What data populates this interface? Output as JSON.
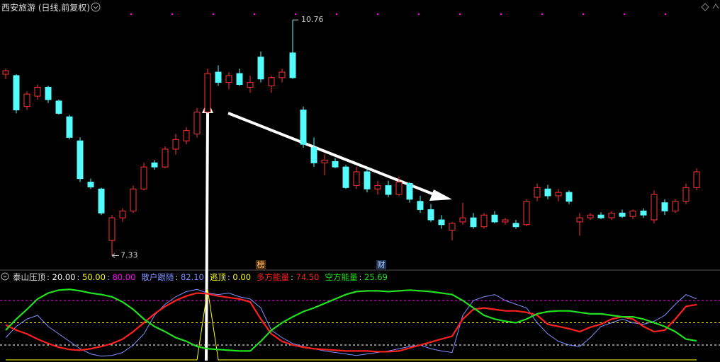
{
  "chart_data": [
    {
      "type": "candlestick",
      "title": "西安旅游 (日线,前复权)",
      "high_label": "10.76",
      "low_label": "7.33",
      "markers": [
        "榜",
        "财"
      ],
      "ylim": [
        7.14,
        11.05
      ],
      "up_color": "#ff3232",
      "down_color": "#54fcfc",
      "open": [
        9.97,
        9.95,
        9.5,
        9.65,
        9.78,
        9.58,
        9.35,
        9.0,
        8.4,
        8.3,
        7.55,
        7.88,
        7.98,
        8.3,
        8.68,
        8.62,
        8.88,
        9.0,
        9.1,
        9.42,
        10.0,
        9.85,
        9.98,
        9.78,
        10.22,
        9.8,
        9.92,
        10.28,
        9.45,
        8.9,
        8.68,
        8.7,
        8.62,
        8.35,
        8.55,
        8.3,
        8.35,
        8.22,
        8.38,
        8.12,
        8.0,
        7.85,
        7.7,
        7.82,
        7.88,
        7.75,
        7.92,
        7.82,
        7.8,
        7.78,
        8.18,
        8.3,
        8.2,
        8.25,
        7.82,
        7.88,
        7.92,
        7.88,
        7.95,
        7.9,
        7.98,
        7.85,
        8.1,
        7.98,
        8.12,
        8.32
      ],
      "high": [
        10.05,
        9.97,
        9.72,
        9.82,
        9.8,
        9.6,
        9.38,
        9.05,
        8.45,
        8.32,
        7.92,
        8.02,
        8.35,
        8.68,
        8.72,
        8.92,
        9.1,
        9.2,
        9.48,
        10.05,
        10.1,
        10.0,
        10.05,
        9.95,
        10.3,
        9.95,
        10.05,
        10.76,
        9.5,
        9.05,
        8.8,
        8.75,
        8.65,
        8.62,
        8.6,
        8.42,
        8.42,
        8.48,
        8.4,
        8.2,
        8.08,
        7.92,
        7.82,
        8.1,
        7.95,
        7.95,
        7.98,
        7.88,
        7.85,
        8.15,
        8.38,
        8.36,
        8.3,
        8.28,
        7.95,
        7.95,
        7.96,
        7.98,
        8.0,
        8.0,
        8.02,
        8.28,
        8.15,
        8.15,
        8.38,
        8.6
      ],
      "low": [
        9.9,
        9.4,
        9.45,
        9.6,
        9.55,
        9.38,
        9.02,
        8.4,
        8.3,
        7.92,
        7.33,
        7.82,
        7.95,
        8.28,
        8.58,
        8.6,
        8.8,
        8.95,
        9.05,
        9.4,
        9.8,
        9.75,
        9.8,
        9.7,
        9.85,
        9.7,
        9.85,
        9.9,
        8.9,
        8.62,
        8.5,
        8.6,
        8.3,
        8.3,
        8.25,
        8.22,
        8.18,
        8.2,
        8.1,
        7.95,
        7.82,
        7.72,
        7.55,
        7.78,
        7.72,
        7.72,
        7.8,
        7.78,
        7.72,
        7.76,
        8.12,
        8.15,
        8.12,
        8.08,
        7.62,
        7.85,
        7.86,
        7.85,
        7.88,
        7.86,
        7.88,
        7.8,
        7.92,
        7.95,
        8.08,
        8.28
      ],
      "close": [
        10.02,
        9.45,
        9.68,
        9.78,
        9.6,
        9.4,
        9.05,
        8.45,
        8.33,
        7.95,
        7.88,
        7.98,
        8.3,
        8.62,
        8.62,
        8.88,
        9.02,
        9.15,
        9.42,
        9.98,
        9.85,
        9.95,
        9.82,
        9.85,
        9.9,
        9.92,
        10.0,
        9.92,
        8.95,
        8.68,
        8.72,
        8.62,
        8.32,
        8.55,
        8.3,
        8.35,
        8.22,
        8.4,
        8.15,
        8.0,
        7.85,
        7.78,
        7.8,
        7.88,
        7.75,
        7.92,
        7.82,
        7.85,
        7.75,
        8.12,
        8.32,
        8.2,
        8.25,
        8.12,
        7.88,
        7.92,
        7.88,
        7.95,
        7.9,
        7.98,
        7.92,
        8.22,
        7.98,
        8.12,
        8.32,
        8.55
      ]
    },
    {
      "type": "line",
      "title": "泰山压顶",
      "ylim": [
        0,
        100
      ],
      "yticks": [
        {
          "value": 20,
          "label": "20.00",
          "color": "#ffffff"
        },
        {
          "value": 50,
          "label": "50.00",
          "color": "#ffff00"
        },
        {
          "value": 80,
          "label": "80.00",
          "color": "#ff00ff"
        }
      ],
      "series": [
        {
          "name": "散户跟随",
          "color": "#8090ff",
          "last_label": "82.10",
          "values": [
            30,
            45,
            55,
            60,
            45,
            35,
            25,
            15,
            8,
            5,
            6,
            10,
            20,
            35,
            60,
            75,
            85,
            92,
            95,
            90,
            88,
            90,
            85,
            82,
            70,
            40,
            30,
            22,
            18,
            15,
            12,
            10,
            8,
            6,
            8,
            10,
            12,
            15,
            18,
            20,
            15,
            12,
            10,
            60,
            80,
            85,
            88,
            80,
            75,
            70,
            50,
            35,
            25,
            20,
            18,
            30,
            45,
            50,
            55,
            50,
            48,
            52,
            60,
            75,
            88,
            82.1
          ]
        },
        {
          "name": "逃顶",
          "color": "#ffff00",
          "last_label": "0.00",
          "values": [
            0,
            0,
            0,
            0,
            0,
            0,
            0,
            0,
            0,
            0,
            0,
            0,
            0,
            0,
            0,
            0,
            0,
            0,
            0,
            95,
            0,
            0,
            0,
            0,
            0,
            0,
            0,
            0,
            0,
            0,
            0,
            0,
            0,
            0,
            0,
            0,
            0,
            0,
            0,
            0,
            0,
            0,
            0,
            0,
            0,
            0,
            0,
            0,
            0,
            0,
            0,
            0,
            0,
            0,
            0,
            0,
            0,
            0,
            0,
            0,
            0,
            0,
            0,
            0,
            0,
            0
          ]
        },
        {
          "name": "多方能量",
          "color": "#ff2020",
          "last_label": "74.50",
          "values": [
            47,
            40,
            35,
            28,
            22,
            17,
            14,
            13,
            15,
            18,
            22,
            28,
            38,
            50,
            62,
            72,
            80,
            86,
            90,
            89,
            86,
            84,
            82,
            78,
            55,
            35,
            25,
            20,
            17,
            15,
            14,
            13,
            12,
            12,
            12,
            11,
            11,
            12,
            16,
            20,
            24,
            28,
            32,
            55,
            68,
            70,
            68,
            66,
            66,
            64,
            60,
            48,
            45,
            42,
            38,
            44,
            48,
            55,
            58,
            55,
            45,
            38,
            40,
            55,
            72,
            74.5
          ]
        },
        {
          "name": "空方能量",
          "color": "#20e020",
          "last_label": "25.69",
          "values": [
            40,
            55,
            68,
            82,
            90,
            94,
            95,
            93,
            90,
            88,
            85,
            78,
            68,
            55,
            45,
            38,
            30,
            25,
            18,
            15,
            14,
            13,
            12,
            12,
            25,
            40,
            50,
            58,
            65,
            70,
            76,
            82,
            88,
            92,
            93,
            93,
            92,
            93,
            94,
            93,
            92,
            90,
            88,
            80,
            70,
            60,
            55,
            52,
            50,
            55,
            62,
            65,
            66,
            66,
            64,
            62,
            62,
            60,
            58,
            58,
            55,
            50,
            45,
            38,
            28,
            25.69
          ]
        }
      ]
    }
  ]
}
